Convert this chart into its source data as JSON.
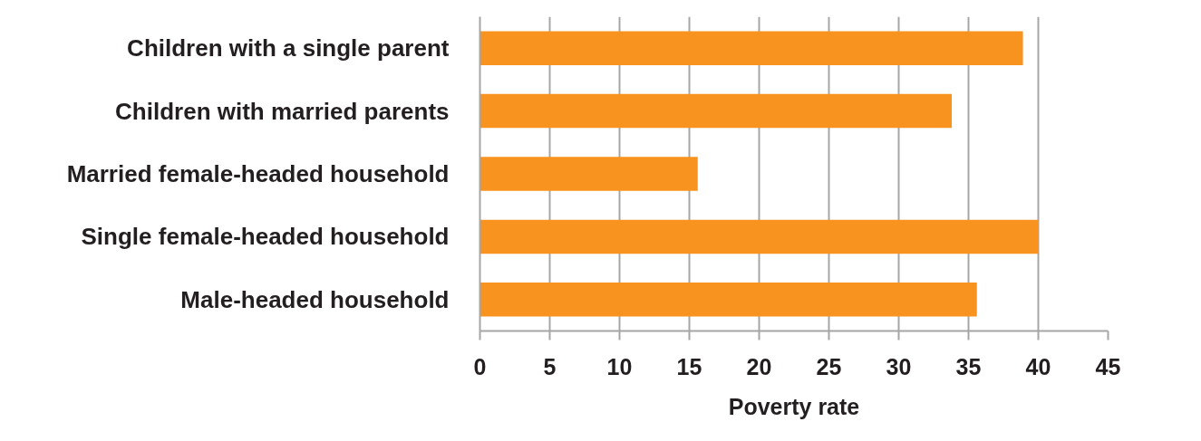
{
  "chart_data": {
    "type": "bar",
    "orientation": "horizontal",
    "categories": [
      "Children with a single parent",
      "Children with married parents",
      "Married female-headed household",
      "Single female-headed household",
      "Male-headed household"
    ],
    "values": [
      38.9,
      33.8,
      15.6,
      40.0,
      35.6
    ],
    "color": "#f7931e",
    "xlabel": "Poverty rate",
    "xlim": [
      0,
      45
    ],
    "xticks": [
      0,
      5,
      10,
      15,
      20,
      25,
      30,
      35,
      40,
      45
    ],
    "grid": "x"
  }
}
